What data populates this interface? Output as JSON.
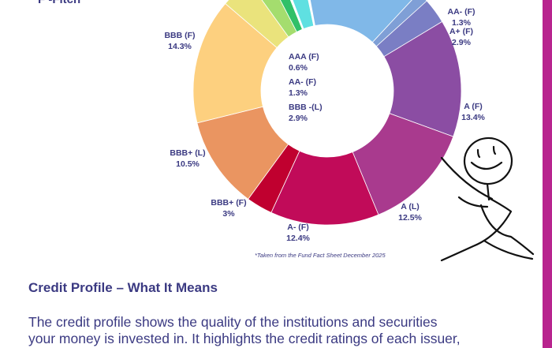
{
  "legend_note": "F -Fitch",
  "footnote": "*Taken from the Fund Fact Sheet December 2025",
  "section_title": "Credit Profile – What It Means",
  "body_lines": [
    "The credit profile shows the quality of the institutions and securities",
    "your money is invested in. It highlights the credit ratings of each issuer,"
  ],
  "colors": {
    "accent": "#b8248e",
    "text": "#3b3a82"
  },
  "chart_data": {
    "type": "pie",
    "variant": "donut",
    "source_note": "*Taken from the Fund Fact Sheet December 2025",
    "slices": [
      {
        "label": "AA- (F)",
        "value": 1.3,
        "color": "#7f9fd6",
        "show_label": true
      },
      {
        "label": "A+ (F)",
        "value": 2.9,
        "color": "#7a7ec4",
        "show_label": true
      },
      {
        "label": "A (F)",
        "value": 13.4,
        "color": "#8b4da3",
        "show_label": true
      },
      {
        "label": "A (L)",
        "value": 12.5,
        "color": "#a93a8e",
        "show_label": true
      },
      {
        "label": "A- (F)",
        "value": 12.4,
        "color": "#c10b59",
        "show_label": true
      },
      {
        "label": "BBB+ (F)",
        "value": 3.0,
        "value_text": "3%",
        "color": "#c0002f",
        "show_label": true
      },
      {
        "label": "BBB+ (L)",
        "value": 10.5,
        "color": "#ea9561",
        "show_label": true
      },
      {
        "label": "BBB (F)",
        "value": 14.3,
        "color": "#fdd07f",
        "show_label": true
      },
      {
        "label": "",
        "value": 3.6,
        "color": "#eae37c",
        "show_label": false
      },
      {
        "label": "",
        "value": 2.2,
        "color": "#a4dd6e",
        "show_label": false
      },
      {
        "label": "",
        "value": 1.4,
        "color": "#30c068",
        "show_label": false
      },
      {
        "label": "",
        "value": 0.3,
        "color": "#ffffff",
        "show_label": false
      },
      {
        "label": "",
        "value": 2.4,
        "color": "#5fe0e1",
        "show_label": false
      },
      {
        "label": "",
        "value": 0.3,
        "color": "#ffffff",
        "show_label": false
      },
      {
        "label": "",
        "value": 14.1,
        "color": "#80b8e8",
        "show_label": false
      }
    ],
    "center_labels": [
      {
        "label": "AAA (F)",
        "value": "0.6%"
      },
      {
        "label": "AA- (F)",
        "value": "1.3%"
      },
      {
        "label": "BBB -(L)",
        "value": "2.9%"
      }
    ]
  }
}
